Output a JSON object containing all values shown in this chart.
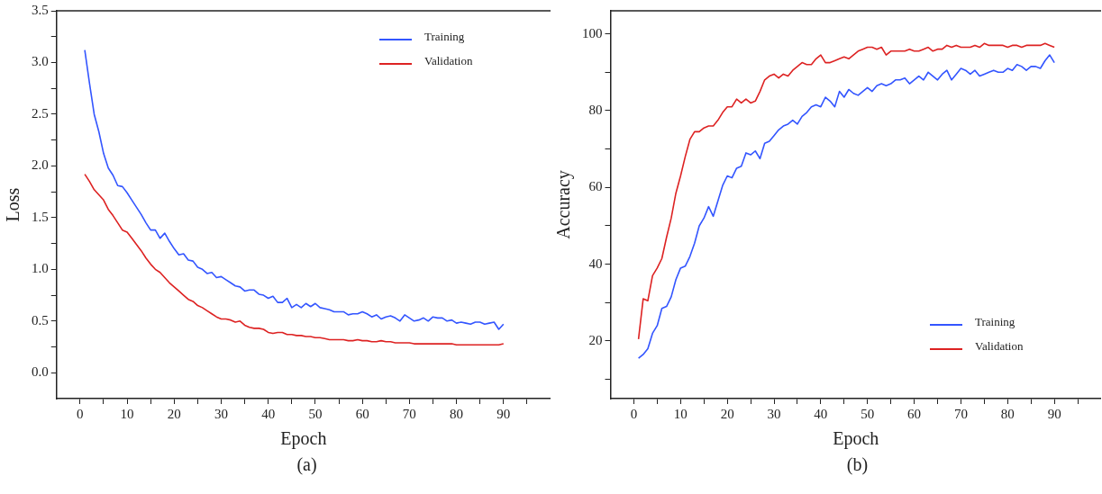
{
  "chart_data": [
    {
      "type": "line",
      "xlabel": "Epoch",
      "ylabel": "Loss",
      "annotations": [
        "(a)"
      ],
      "legend": "top right",
      "grid": false,
      "marker": "none",
      "line_style": "solid",
      "xlim": [
        -5,
        100
      ],
      "xticks": [
        0,
        {
          "value": 5,
          "label": null
        },
        10,
        {
          "value": 15,
          "label": null
        },
        20,
        {
          "value": 25,
          "label": null
        },
        30,
        {
          "value": 35,
          "label": null
        },
        40,
        {
          "value": 45,
          "label": null
        },
        50,
        {
          "value": 55,
          "label": null
        },
        60,
        {
          "value": 65,
          "label": null
        },
        70,
        {
          "value": 75,
          "label": null
        },
        80,
        {
          "value": 85,
          "label": null
        },
        90,
        {
          "value": 95,
          "label": null
        }
      ],
      "ylim": [
        -0.25,
        3.5
      ],
      "yticks": [
        {
          "value": 0,
          "label": "0.0"
        },
        {
          "value": 0.25,
          "label": null
        },
        {
          "value": 0.5,
          "label": "0.5"
        },
        {
          "value": 0.75,
          "label": null
        },
        {
          "value": 1,
          "label": "1.0"
        },
        {
          "value": 1.25,
          "label": null
        },
        {
          "value": 1.5,
          "label": "1.5"
        },
        {
          "value": 1.75,
          "label": null
        },
        {
          "value": 2,
          "label": "2.0"
        },
        {
          "value": 2.25,
          "label": null
        },
        {
          "value": 2.5,
          "label": "2.5"
        },
        {
          "value": 2.75,
          "label": null
        },
        {
          "value": 3,
          "label": "3.0"
        },
        {
          "value": 3.25,
          "label": null
        },
        {
          "value": 3.5,
          "label": "3.5"
        }
      ],
      "x": [
        1,
        2,
        3,
        4,
        5,
        6,
        7,
        8,
        9,
        10,
        11,
        12,
        13,
        14,
        15,
        16,
        17,
        18,
        19,
        20,
        21,
        22,
        23,
        24,
        25,
        26,
        27,
        28,
        29,
        30,
        31,
        32,
        33,
        34,
        35,
        36,
        37,
        38,
        39,
        40,
        41,
        42,
        43,
        44,
        45,
        46,
        47,
        48,
        49,
        50,
        51,
        52,
        53,
        54,
        55,
        56,
        57,
        58,
        59,
        60,
        61,
        62,
        63,
        64,
        65,
        66,
        67,
        68,
        69,
        70,
        71,
        72,
        73,
        74,
        75,
        76,
        77,
        78,
        79,
        80,
        81,
        82,
        83,
        84,
        85,
        86,
        87,
        88,
        89,
        90
      ],
      "series": [
        {
          "name": "Training",
          "color": "#3355ff",
          "values": [
            3.12,
            2.8,
            2.5,
            2.33,
            2.12,
            1.98,
            1.91,
            1.81,
            1.8,
            1.74,
            1.67,
            1.6,
            1.53,
            1.45,
            1.38,
            1.38,
            1.3,
            1.35,
            1.27,
            1.2,
            1.14,
            1.15,
            1.09,
            1.08,
            1.02,
            1.0,
            0.96,
            0.97,
            0.92,
            0.93,
            0.9,
            0.87,
            0.84,
            0.83,
            0.79,
            0.8,
            0.8,
            0.76,
            0.75,
            0.72,
            0.74,
            0.68,
            0.68,
            0.72,
            0.63,
            0.66,
            0.63,
            0.67,
            0.64,
            0.67,
            0.63,
            0.62,
            0.61,
            0.59,
            0.59,
            0.59,
            0.56,
            0.57,
            0.57,
            0.59,
            0.57,
            0.54,
            0.56,
            0.52,
            0.54,
            0.55,
            0.53,
            0.5,
            0.56,
            0.53,
            0.5,
            0.51,
            0.53,
            0.5,
            0.54,
            0.53,
            0.53,
            0.5,
            0.51,
            0.48,
            0.49,
            0.48,
            0.47,
            0.49,
            0.49,
            0.47,
            0.48,
            0.49,
            0.42,
            0.47
          ]
        },
        {
          "name": "Validation",
          "color": "#dd2222",
          "values": [
            1.92,
            1.85,
            1.77,
            1.72,
            1.67,
            1.58,
            1.52,
            1.45,
            1.38,
            1.36,
            1.3,
            1.24,
            1.18,
            1.11,
            1.05,
            1.0,
            0.97,
            0.92,
            0.87,
            0.83,
            0.79,
            0.75,
            0.71,
            0.69,
            0.65,
            0.63,
            0.6,
            0.57,
            0.54,
            0.52,
            0.52,
            0.51,
            0.49,
            0.5,
            0.46,
            0.44,
            0.43,
            0.43,
            0.42,
            0.39,
            0.38,
            0.39,
            0.39,
            0.37,
            0.37,
            0.36,
            0.36,
            0.35,
            0.35,
            0.34,
            0.34,
            0.33,
            0.32,
            0.32,
            0.32,
            0.32,
            0.31,
            0.31,
            0.32,
            0.31,
            0.31,
            0.3,
            0.3,
            0.31,
            0.3,
            0.3,
            0.29,
            0.29,
            0.29,
            0.29,
            0.28,
            0.28,
            0.28,
            0.28,
            0.28,
            0.28,
            0.28,
            0.28,
            0.28,
            0.27,
            0.27,
            0.27,
            0.27,
            0.27,
            0.27,
            0.27,
            0.27,
            0.27,
            0.27,
            0.28
          ]
        }
      ]
    },
    {
      "type": "line",
      "xlabel": "Epoch",
      "ylabel": "Accuracy",
      "annotations": [
        "(b)"
      ],
      "legend": "bottom right",
      "grid": false,
      "marker": "none",
      "line_style": "solid",
      "xlim": [
        -5,
        100
      ],
      "xticks": [
        0,
        {
          "value": 5,
          "label": null
        },
        10,
        {
          "value": 15,
          "label": null
        },
        20,
        {
          "value": 25,
          "label": null
        },
        30,
        {
          "value": 35,
          "label": null
        },
        40,
        {
          "value": 45,
          "label": null
        },
        50,
        {
          "value": 55,
          "label": null
        },
        60,
        {
          "value": 65,
          "label": null
        },
        70,
        {
          "value": 75,
          "label": null
        },
        80,
        {
          "value": 85,
          "label": null
        },
        90,
        {
          "value": 95,
          "label": null
        }
      ],
      "ylim": [
        5,
        106
      ],
      "yticks": [
        {
          "value": 10,
          "label": null
        },
        20,
        {
          "value": 30,
          "label": null
        },
        40,
        {
          "value": 50,
          "label": null
        },
        60,
        {
          "value": 70,
          "label": null
        },
        80,
        {
          "value": 90,
          "label": null
        },
        100
      ],
      "x": [
        1,
        2,
        3,
        4,
        5,
        6,
        7,
        8,
        9,
        10,
        11,
        12,
        13,
        14,
        15,
        16,
        17,
        18,
        19,
        20,
        21,
        22,
        23,
        24,
        25,
        26,
        27,
        28,
        29,
        30,
        31,
        32,
        33,
        34,
        35,
        36,
        37,
        38,
        39,
        40,
        41,
        42,
        43,
        44,
        45,
        46,
        47,
        48,
        49,
        50,
        51,
        52,
        53,
        54,
        55,
        56,
        57,
        58,
        59,
        60,
        61,
        62,
        63,
        64,
        65,
        66,
        67,
        68,
        69,
        70,
        71,
        72,
        73,
        74,
        75,
        76,
        77,
        78,
        79,
        80,
        81,
        82,
        83,
        84,
        85,
        86,
        87,
        88,
        89,
        90
      ],
      "series": [
        {
          "name": "Training",
          "color": "#3355ff",
          "values": [
            15.5,
            16.5,
            18,
            22,
            24,
            28.5,
            29,
            31.5,
            36,
            39,
            39.5,
            42,
            45.5,
            50,
            52,
            55,
            52.5,
            56.5,
            60.5,
            63,
            62.5,
            65,
            65.5,
            69,
            68.5,
            69.5,
            67.5,
            71.5,
            72,
            73.5,
            75,
            76,
            76.5,
            77.5,
            76.5,
            78.5,
            79.5,
            81,
            81.5,
            81,
            83.5,
            82.5,
            81,
            85,
            83.5,
            85.5,
            84.5,
            84,
            85,
            86,
            85,
            86.5,
            87,
            86.5,
            87,
            88,
            88,
            88.5,
            87,
            88,
            89,
            88,
            90,
            89,
            88,
            89.5,
            90.5,
            88,
            89.5,
            91,
            90.5,
            89.5,
            90.5,
            89,
            89.5,
            90,
            90.5,
            90,
            90,
            91,
            90.5,
            92,
            91.5,
            90.5,
            91.5,
            91.5,
            91,
            93,
            94.5,
            92.5
          ]
        },
        {
          "name": "Validation",
          "color": "#dd2222",
          "values": [
            20.5,
            31,
            30.5,
            37,
            39,
            41.5,
            47,
            52,
            58.5,
            63,
            68,
            72.5,
            74.5,
            74.5,
            75.5,
            76,
            76,
            77.5,
            79.5,
            81,
            81,
            83,
            82,
            83,
            82,
            82.5,
            85,
            88,
            89,
            89.5,
            88.5,
            89.5,
            89,
            90.5,
            91.5,
            92.5,
            92,
            92,
            93.5,
            94.5,
            92.5,
            92.5,
            93,
            93.5,
            94,
            93.5,
            94.5,
            95.5,
            96,
            96.5,
            96.5,
            96,
            96.5,
            94.5,
            95.5,
            95.5,
            95.5,
            95.5,
            96,
            95.5,
            95.5,
            96,
            96.5,
            95.5,
            96,
            96,
            97,
            96.5,
            97,
            96.5,
            96.5,
            96.5,
            97,
            96.5,
            97.5,
            97,
            97,
            97,
            97,
            96.5,
            97,
            97,
            96.5,
            97,
            97,
            97,
            97,
            97.5,
            97,
            96.5
          ]
        }
      ]
    }
  ]
}
